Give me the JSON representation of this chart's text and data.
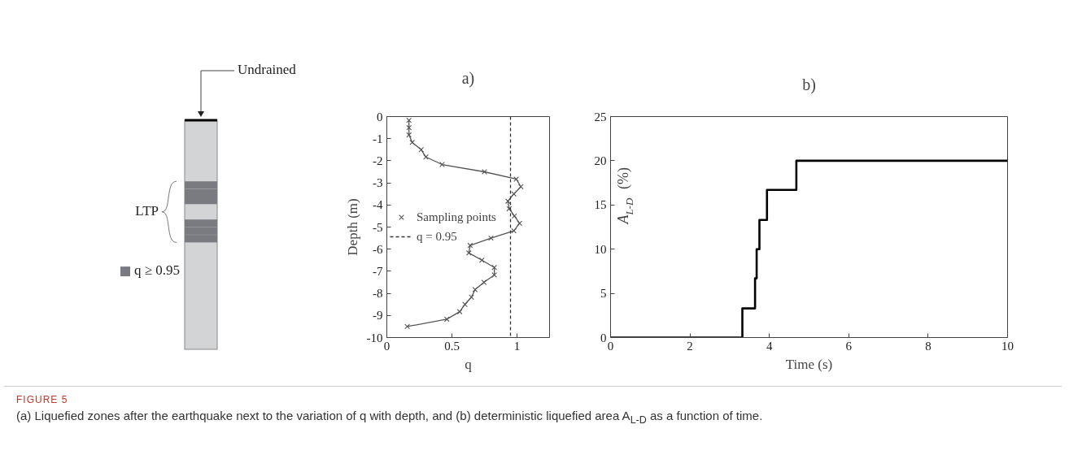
{
  "chart_data": [
    {
      "type": "other",
      "annotations": [
        "Undrained",
        "LTP",
        "q ≥ 0.95"
      ]
    },
    {
      "type": "line",
      "title": "a)",
      "xlabel": "q",
      "ylabel": "Depth (m)",
      "xlim": [
        0,
        1.25
      ],
      "ylim": [
        -10,
        0
      ],
      "xticks": [
        0,
        0.5,
        1
      ],
      "yticks": [
        0,
        -1,
        -2,
        -3,
        -4,
        -5,
        -6,
        -7,
        -8,
        -9,
        -10
      ],
      "grid": false,
      "legend": "left",
      "marker": "cross",
      "series": [
        {
          "name": "Sampling points",
          "color": "#555555",
          "x": [
            0.17,
            0.17,
            0.17,
            0.195,
            0.264,
            0.3,
            0.425,
            0.75,
            0.994,
            1.03,
            0.976,
            0.93,
            0.94,
            0.98,
            1.02,
            0.976,
            0.8,
            0.64,
            0.63,
            0.73,
            0.826,
            0.826,
            0.746,
            0.678,
            0.65,
            0.6,
            0.56,
            0.461,
            0.157
          ],
          "values": [
            -0.17,
            -0.5,
            -0.83,
            -1.17,
            -1.5,
            -1.83,
            -2.17,
            -2.5,
            -2.83,
            -3.17,
            -3.5,
            -3.83,
            -4.17,
            -4.5,
            -4.83,
            -5.17,
            -5.5,
            -5.83,
            -6.17,
            -6.5,
            -6.83,
            -7.17,
            -7.5,
            -7.83,
            -8.17,
            -8.5,
            -8.83,
            -9.17,
            -9.5
          ]
        },
        {
          "name": "q = 0.95",
          "color": "#333333",
          "marker": "none",
          "line_style": "dashed",
          "x": [
            0.95,
            0.95
          ],
          "values": [
            0,
            -10
          ]
        }
      ]
    },
    {
      "type": "step",
      "title": "b)",
      "xlabel": "Time (s)",
      "ylabel": "A$_{L-D}$ (%)",
      "xlim": [
        0,
        10
      ],
      "ylim": [
        0,
        25
      ],
      "xticks": [
        0,
        2,
        4,
        6,
        8,
        10
      ],
      "yticks": [
        0,
        5,
        10,
        15,
        20,
        25
      ],
      "grid": false,
      "series": [
        {
          "color": "#000000",
          "x": [
            0,
            3.32,
            3.64,
            3.68,
            3.75,
            3.94,
            4.68,
            10
          ],
          "values": [
            0,
            3.3,
            6.7,
            10,
            13.3,
            16.7,
            20,
            20
          ]
        }
      ],
      "annotations": [
        "FIGURE 5",
        "(a) Liquefied zones after the earthquake next to the variation of q with depth, and (b) deterministic liquefied area A$_{L-D}$ as a function of time."
      ]
    }
  ]
}
